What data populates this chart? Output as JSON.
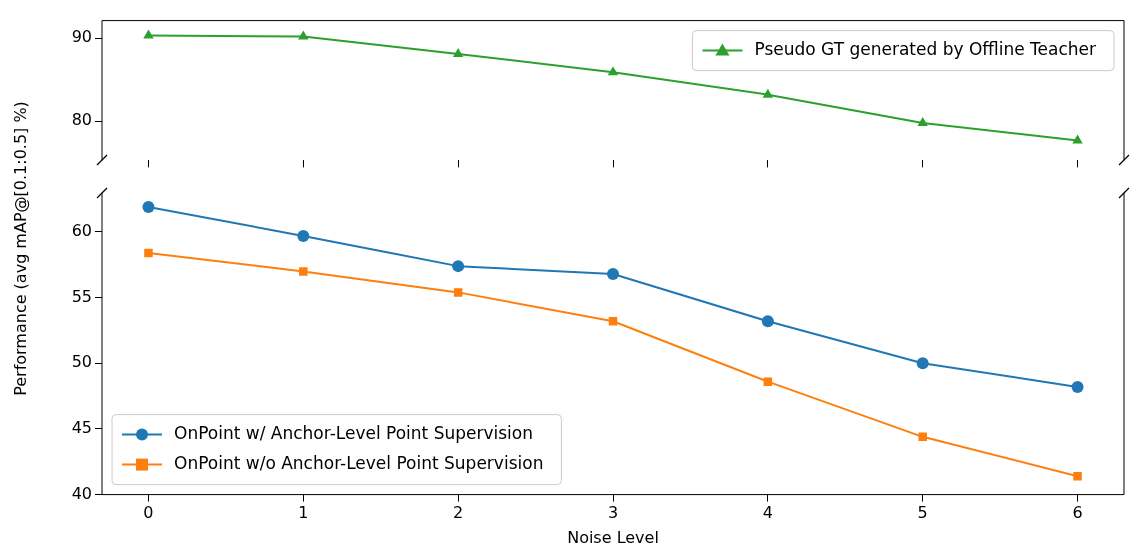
{
  "chart_data": [
    {
      "type": "line",
      "x": [
        0,
        1,
        2,
        3,
        4,
        5,
        6
      ],
      "series": [
        {
          "name": "Pseudo GT generated by Offline Teacher",
          "color": "#2ca02c",
          "marker": "triangle",
          "values": [
            90.3,
            90.2,
            88.1,
            85.9,
            83.2,
            79.8,
            77.7
          ]
        }
      ],
      "xlim": [
        -0.3,
        6.3
      ],
      "xticks": [
        0,
        1,
        2,
        3,
        4,
        5,
        6
      ],
      "ylim": [
        75.3,
        92.1
      ],
      "yticks": [
        80,
        90
      ],
      "tick_labels": "y",
      "legend": "top right"
    },
    {
      "type": "line",
      "x": [
        0,
        1,
        2,
        3,
        4,
        5,
        6
      ],
      "xlabel": "Noise Level",
      "ylabel": "Performance (avg mAP@[0.1:0.5] %)",
      "series": [
        {
          "name": "OnPoint w/ Anchor-Level Point Supervision",
          "color": "#1f77b4",
          "marker": "circle",
          "values": [
            61.9,
            59.7,
            57.4,
            56.8,
            53.2,
            50.0,
            48.2
          ]
        },
        {
          "name": "OnPoint w/o Anchor-Level Point Supervision",
          "color": "#ff7f0e",
          "marker": "square",
          "values": [
            58.4,
            57.0,
            55.4,
            53.2,
            48.6,
            44.4,
            41.4
          ]
        }
      ],
      "xlim": [
        -0.3,
        6.3
      ],
      "xticks": [
        0,
        1,
        2,
        3,
        4,
        5,
        6
      ],
      "ylim": [
        40,
        63
      ],
      "yticks": [
        40,
        45,
        50,
        55,
        60
      ],
      "legend": "bottom left"
    }
  ]
}
